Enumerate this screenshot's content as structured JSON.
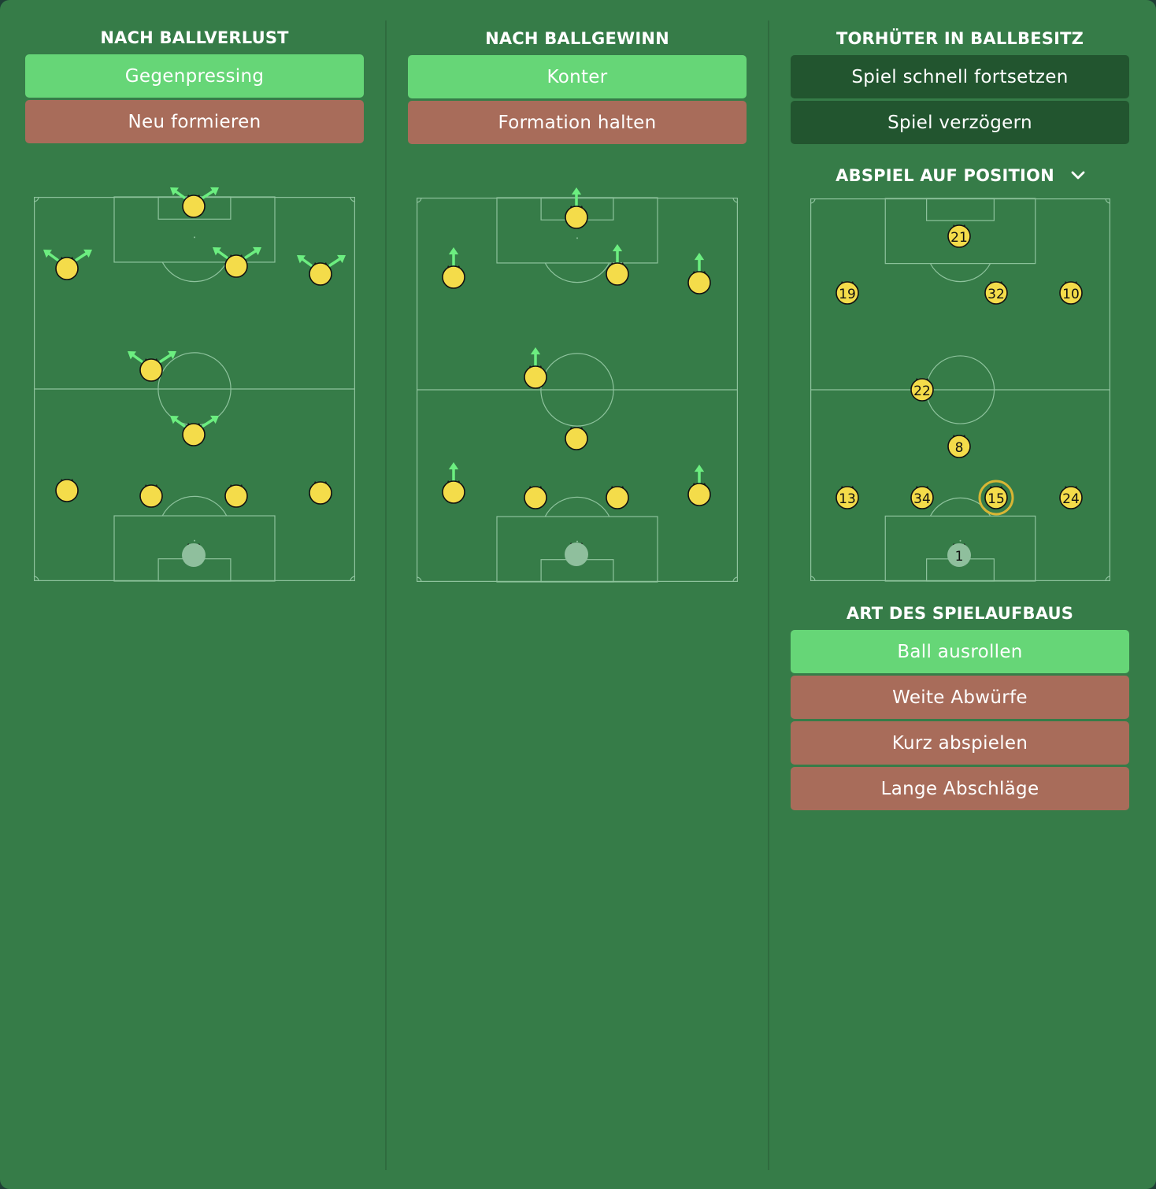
{
  "colors": {
    "background": "#367c48",
    "active_option": "#66d677",
    "inactive_option": "#a86c5a",
    "dark_option": "#22552f",
    "player": "#f4dc4a",
    "goalkeeper": "#8fbf9d",
    "arrow": "#6cee80",
    "selected_ring": "#d8b634"
  },
  "col1": {
    "title": "NACH BALLVERLUST",
    "options": [
      {
        "label": "Gegenpressing",
        "state": "active"
      },
      {
        "label": "Neu formieren",
        "state": "inactive"
      }
    ]
  },
  "col2": {
    "title": "NACH BALLGEWINN",
    "options": [
      {
        "label": "Konter",
        "state": "active"
      },
      {
        "label": "Formation halten",
        "state": "inactive"
      }
    ]
  },
  "col3": {
    "title": "TORHÜTER IN BALLBESITZ",
    "options": [
      {
        "label": "Spiel schnell fortsetzen",
        "state": "neutral"
      },
      {
        "label": "Spiel verzögern",
        "state": "neutral"
      }
    ],
    "distribution_title": "ABSPIEL AUF POSITION",
    "dropdown_icon": "chevron-down-icon",
    "players": [
      {
        "number": "21",
        "role": "striker"
      },
      {
        "number": "19",
        "role": "left-winger"
      },
      {
        "number": "32",
        "role": "attacking-mid"
      },
      {
        "number": "10",
        "role": "right-winger"
      },
      {
        "number": "22",
        "role": "central-mid"
      },
      {
        "number": "8",
        "role": "defensive-mid"
      },
      {
        "number": "13",
        "role": "left-back"
      },
      {
        "number": "34",
        "role": "centre-back-left"
      },
      {
        "number": "15",
        "role": "centre-back-right",
        "selected": true
      },
      {
        "number": "24",
        "role": "right-back"
      },
      {
        "number": "1",
        "role": "goalkeeper"
      }
    ],
    "buildup_title": "ART DES SPIELAUFBAUS",
    "buildup_options": [
      {
        "label": "Ball ausrollen",
        "state": "active"
      },
      {
        "label": "Weite Abwürfe",
        "state": "inactive"
      },
      {
        "label": "Kurz abspielen",
        "state": "inactive"
      },
      {
        "label": "Lange Abschläge",
        "state": "inactive"
      }
    ]
  },
  "pitch1_arrows": "diagonal-split",
  "pitch2_arrows": "forward"
}
